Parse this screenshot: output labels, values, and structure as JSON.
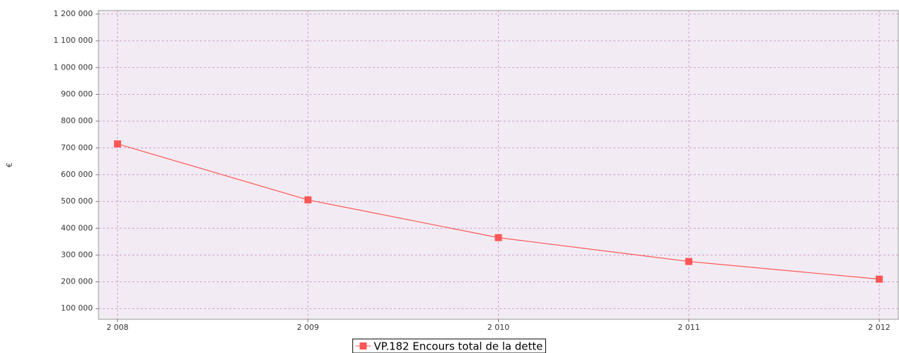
{
  "chart_data": {
    "type": "line",
    "y_label": "€",
    "x": [
      2008,
      2009,
      2010,
      2011,
      2012
    ],
    "series": [
      {
        "name": "VP.182 Encours total de la dette",
        "color": "#ff5555",
        "values": [
          715000,
          506000,
          365000,
          276000,
          210000
        ]
      }
    ],
    "xlim": [
      2007.9,
      2012.1
    ],
    "ylim": [
      60000,
      1213000
    ],
    "xticks": [
      {
        "value": 2008,
        "label": "2 008"
      },
      {
        "value": 2009,
        "label": "2 009"
      },
      {
        "value": 2010,
        "label": "2 010"
      },
      {
        "value": 2011,
        "label": "2 011"
      },
      {
        "value": 2012,
        "label": "2 012"
      }
    ],
    "yticks": [
      {
        "value": 100000,
        "label": "100 000"
      },
      {
        "value": 200000,
        "label": "200 000"
      },
      {
        "value": 300000,
        "label": "300 000"
      },
      {
        "value": 400000,
        "label": "400 000"
      },
      {
        "value": 500000,
        "label": "500 000"
      },
      {
        "value": 600000,
        "label": "600 000"
      },
      {
        "value": 700000,
        "label": "700 000"
      },
      {
        "value": 800000,
        "label": "800 000"
      },
      {
        "value": 900000,
        "label": "900 000"
      },
      {
        "value": 1000000,
        "label": "1 000 000"
      },
      {
        "value": 1100000,
        "label": "1 100 000"
      },
      {
        "value": 1200000,
        "label": "1 200 000"
      }
    ],
    "grid": true,
    "legend": "bottom"
  }
}
